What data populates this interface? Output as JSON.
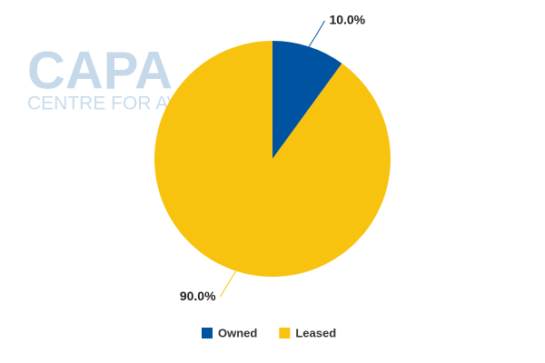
{
  "chart_data": {
    "type": "pie",
    "watermark": "CAPA",
    "watermark_subtitle": "CENTRE FOR AVIATION",
    "categories": [
      "Owned",
      "Leased"
    ],
    "values": [
      10,
      90
    ],
    "value_labels": [
      "10.0%",
      "90.0%"
    ],
    "colors": [
      "#0053a0",
      "#f8c30f"
    ],
    "legend": "bottom"
  }
}
